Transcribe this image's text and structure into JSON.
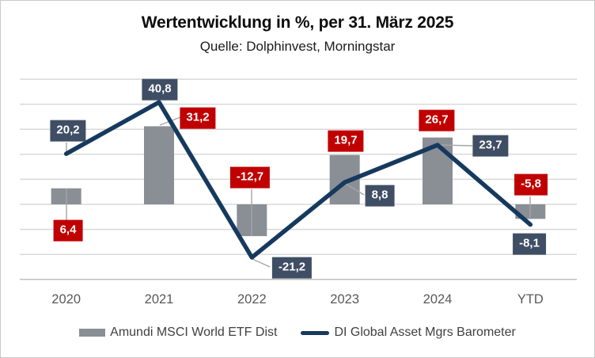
{
  "header": {
    "title": "Wertentwicklung in %, per 31. März 2025",
    "subtitle": "Quelle: Dolphinvest, Morningstar"
  },
  "chart_data": {
    "type": "combo-bar-line",
    "title": "Wertentwicklung in %, per 31. März 2025",
    "subtitle": "Quelle: Dolphinvest, Morningstar",
    "categories": [
      "2020",
      "2021",
      "2022",
      "2023",
      "2024",
      "YTD"
    ],
    "series": [
      {
        "name": "Amundi MSCI World ETF Dist",
        "type": "bar",
        "color": "#8a8e95",
        "label_bg": "#c00000",
        "values": [
          6.4,
          31.2,
          -12.7,
          19.7,
          26.7,
          -5.8
        ],
        "labels": [
          "6,4",
          "31,2",
          "-12,7",
          "19,7",
          "26,7",
          "-5,8"
        ]
      },
      {
        "name": "DI Global Asset Mgrs Barometer",
        "type": "line",
        "color": "#16395e",
        "label_bg": "#3f4e64",
        "values": [
          20.2,
          40.8,
          -21.2,
          8.8,
          23.7,
          -8.1
        ],
        "labels": [
          "20,2",
          "40,8",
          "-21,2",
          "8,8",
          "23,7",
          "-8,1"
        ]
      }
    ],
    "ylim": [
      -30,
      50
    ],
    "grid_step": 10,
    "grid": "on",
    "y_axis_labels": "none",
    "legend_position": "bottom",
    "colors": {
      "gridline": "#d9d9d9",
      "axis_line": "#bfbfbf",
      "leader": "#a6a6a6",
      "axis_label_text": "#595959",
      "legend_text": "#404040",
      "value_label_text": "#ffffff"
    }
  }
}
